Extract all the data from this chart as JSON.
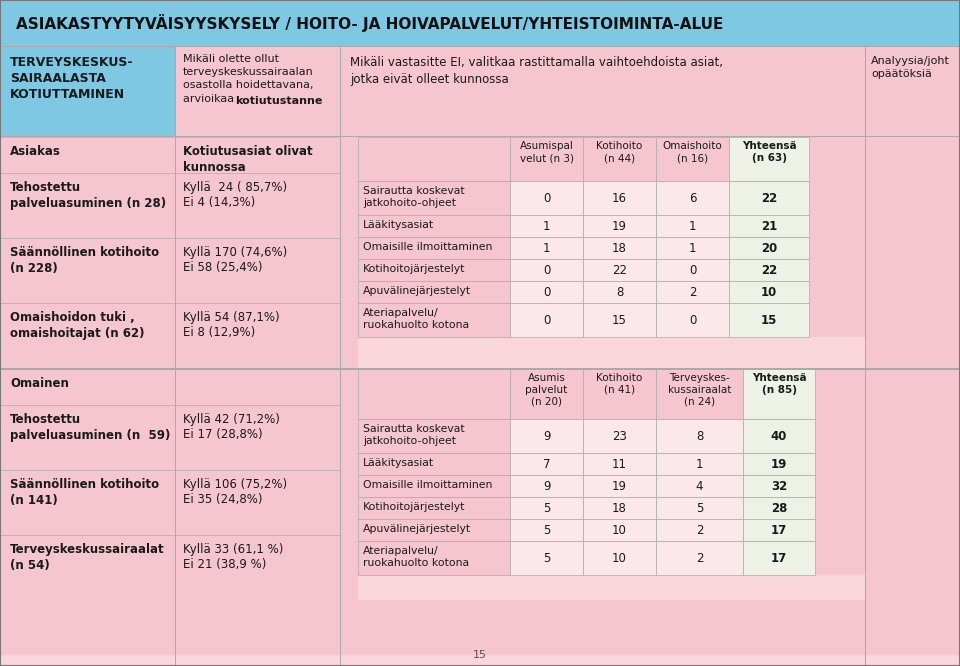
{
  "title": "ASIAKASTYYTYVÄISYYSKYSELY / HOITO- JA HOIVAPALVELUT/YHTEISTOIMINTA-ALUE",
  "header_col1": "TERVEYSKESKUS-\nSAIRAALASTA\nKOTIUTTAMINEN",
  "header_col2_plain": "Mikäli olette ollut\nterveyskeskussairaalan\nosastolla hoidettavana,\narvioikaa ",
  "header_col2_bold": "kotiutustanne",
  "header_col3": "Mikäli vastasitte EI, valitkaa rastittamalla vaihtoehdoista asiat,\njotka eivät olleet kunnossa",
  "header_col4": "Analyysia/joht\nopäätöksiä",
  "section1_left": [
    {
      "label": "Asiakas",
      "kyla": "",
      "ei": ""
    },
    {
      "label": "Tehostettu\npalveluasuminen (n 28)",
      "kyla": "Kyllä  24 ( 85,7%)",
      "ei": "Ei 4 (14,3%)"
    },
    {
      "label": "Säännöllinen kotihoito\n(n 228)",
      "kyla": "Kyllä 170 (74,6%)",
      "ei": "Ei 58 (25,4%)"
    },
    {
      "label": "Omaishoidon tuki ,\nomaishoitajat (n 62)",
      "kyla": "Kyllä 54 (87,1%)",
      "ei": "Ei 8 (12,9%)"
    }
  ],
  "section1_col2_top": "Kotiutusasiat olivat\nkunnossa",
  "table1_headers": [
    "",
    "Asumispal\nvelut (n 3)",
    "Kotihoito\n(n 44)",
    "Omaishoito\n(n 16)",
    "Yhteensä\n(n 63)"
  ],
  "table1_rows": [
    {
      "label": "Sairautta koskevat\njatkohoito-ohjeet",
      "values": [
        0,
        16,
        6,
        22
      ]
    },
    {
      "label": "Lääkitysasiat",
      "values": [
        1,
        19,
        1,
        21
      ]
    },
    {
      "label": "Omaisille ilmoittaminen",
      "values": [
        1,
        18,
        1,
        20
      ]
    },
    {
      "label": "Kotihoitojärjestelyt",
      "values": [
        0,
        22,
        0,
        22
      ]
    },
    {
      "label": "Apuvälinejärjestelyt",
      "values": [
        0,
        8,
        2,
        10
      ]
    },
    {
      "label": "Ateriapalvelu/\nruokahuolto kotona",
      "values": [
        0,
        15,
        0,
        15
      ]
    }
  ],
  "section2_left": [
    {
      "label": "Omainen",
      "kyla": "",
      "ei": ""
    },
    {
      "label": "Tehostettu\npalveluasuminen (n  59)",
      "kyla": "Kyllä 42 (71,2%)",
      "ei": "Ei 17 (28,8%)"
    },
    {
      "label": "Säännöllinen kotihoito\n(n 141)",
      "kyla": "Kyllä 106 (75,2%)",
      "ei": "Ei 35 (24,8%)"
    },
    {
      "label": "Terveyskeskussairaalat\n(n 54)",
      "kyla": "Kyllä 33 (61,1 %)",
      "ei": "Ei 21 (38,9 %)"
    }
  ],
  "table2_headers": [
    "",
    "Asumis\npalvelut\n(n 20)",
    "Kotihoito\n(n 41)",
    "Terveyskes-\nkussairaalat\n(n 24)",
    "Yhteensä\n(n 85)"
  ],
  "table2_rows": [
    {
      "label": "Sairautta koskevat\njatkohoito-ohjeet",
      "values": [
        9,
        23,
        8,
        40
      ]
    },
    {
      "label": "Lääkitysasiat",
      "values": [
        7,
        11,
        1,
        19
      ]
    },
    {
      "label": "Omaisille ilmoittaminen",
      "values": [
        9,
        19,
        4,
        32
      ]
    },
    {
      "label": "Kotihoitojärjestelyt",
      "values": [
        5,
        18,
        5,
        28
      ]
    },
    {
      "label": "Apuvälinejärjestelyt",
      "values": [
        5,
        10,
        2,
        17
      ]
    },
    {
      "label": "Ateriapalvelu/\nruokahuolto kotona",
      "values": [
        5,
        10,
        2,
        17
      ]
    }
  ],
  "page_num": "15",
  "colors": {
    "title_bg": "#7ec8e3",
    "light_blue": "#7ec8e3",
    "pink_bg": "#f9d5dc",
    "pink_med": "#f5c6cf",
    "white_green": "#eef2e6",
    "pink_data": "#fbe8eb",
    "border": "#aaaaaa",
    "dark": "#1a1a1a",
    "white": "#ffffff"
  }
}
